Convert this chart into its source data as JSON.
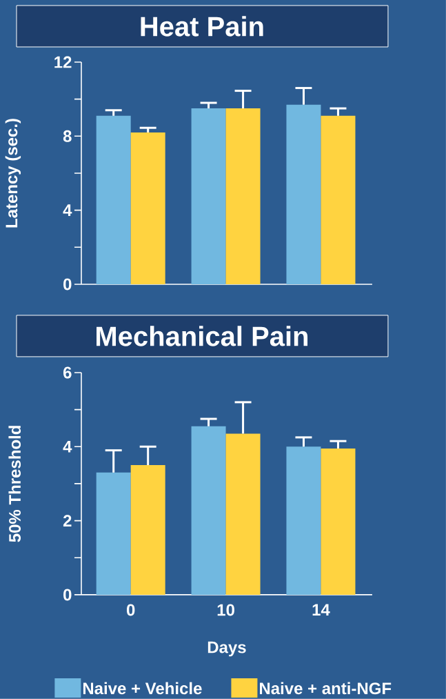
{
  "chart_data": [
    {
      "type": "bar",
      "title": "Heat Pain",
      "ylabel": "Latency (sec.)",
      "categories": [
        "0",
        "10",
        "14"
      ],
      "series": [
        {
          "color": "#71b8e0",
          "values": [
            9.1,
            9.5,
            9.7
          ],
          "errors": [
            [
              9.1,
              9.4
            ],
            [
              9.5,
              9.8
            ],
            [
              9.7,
              10.6
            ]
          ]
        },
        {
          "color": "#ffd340",
          "values": [
            8.2,
            9.5,
            9.1
          ],
          "errors": [
            [
              8.2,
              8.45
            ],
            [
              9.5,
              10.45
            ],
            [
              9.1,
              9.5
            ]
          ]
        }
      ],
      "ylim": [
        0,
        12
      ],
      "yticks": [
        0,
        {
          "value": 2,
          "label": null
        },
        4,
        {
          "value": 6,
          "label": null
        },
        8,
        {
          "value": 10,
          "label": null
        },
        12
      ],
      "tick_labels": "y"
    },
    {
      "type": "bar",
      "title": "Mechanical Pain",
      "xlabel": "Days",
      "ylabel": "50% Threshold",
      "categories": [
        "0",
        "10",
        "14"
      ],
      "series": [
        {
          "name": "Naive + Vehicle",
          "color": "#71b8e0",
          "values": [
            3.3,
            4.55,
            4.0
          ],
          "errors": [
            [
              3.3,
              3.9
            ],
            [
              4.55,
              4.75
            ],
            [
              4.0,
              4.25
            ]
          ]
        },
        {
          "name": "Naive + anti-NGF",
          "color": "#ffd340",
          "values": [
            3.5,
            4.35,
            3.95
          ],
          "errors": [
            [
              3.5,
              4.0
            ],
            [
              4.35,
              5.2
            ],
            [
              3.95,
              4.15
            ]
          ]
        }
      ],
      "ylim": [
        0,
        6
      ],
      "yticks": [
        0,
        {
          "value": 1,
          "label": null
        },
        2,
        {
          "value": 3,
          "label": null
        },
        4,
        {
          "value": 5,
          "label": null
        },
        6
      ],
      "legend": "bottom"
    }
  ]
}
